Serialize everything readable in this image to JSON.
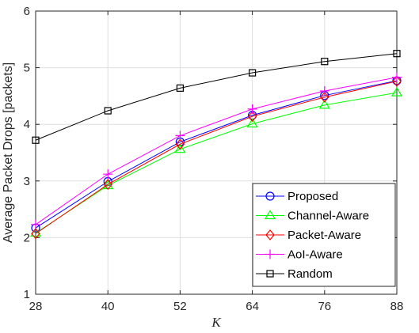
{
  "chart_data": {
    "type": "line",
    "xlabel": "K",
    "ylabel": "Average Packet Drops [packets]",
    "x": [
      28,
      40,
      52,
      64,
      76,
      88
    ],
    "xticks": [
      "28",
      "40",
      "52",
      "64",
      "76",
      "88"
    ],
    "yticks": [
      "1",
      "2",
      "3",
      "4",
      "5",
      "6"
    ],
    "xlim": [
      28,
      88
    ],
    "ylim": [
      1,
      6
    ],
    "grid": true,
    "legend_position": "bottom-right",
    "series": [
      {
        "name": "Proposed",
        "color": "#0000ff",
        "marker": "circle",
        "values": [
          2.17,
          2.99,
          3.69,
          4.16,
          4.51,
          4.77
        ]
      },
      {
        "name": "Channel-Aware",
        "color": "#00ff00",
        "marker": "triangle",
        "values": [
          2.08,
          2.92,
          3.56,
          4.01,
          4.34,
          4.56
        ]
      },
      {
        "name": "Packet-Aware",
        "color": "#ff0000",
        "marker": "diamond",
        "values": [
          2.07,
          2.94,
          3.65,
          4.14,
          4.48,
          4.76
        ]
      },
      {
        "name": "AoI-Aware",
        "color": "#ff00ff",
        "marker": "plus",
        "values": [
          2.23,
          3.12,
          3.8,
          4.27,
          4.59,
          4.83
        ]
      },
      {
        "name": "Random",
        "color": "#000000",
        "marker": "square",
        "values": [
          3.72,
          4.24,
          4.64,
          4.91,
          5.11,
          5.25
        ]
      }
    ]
  }
}
